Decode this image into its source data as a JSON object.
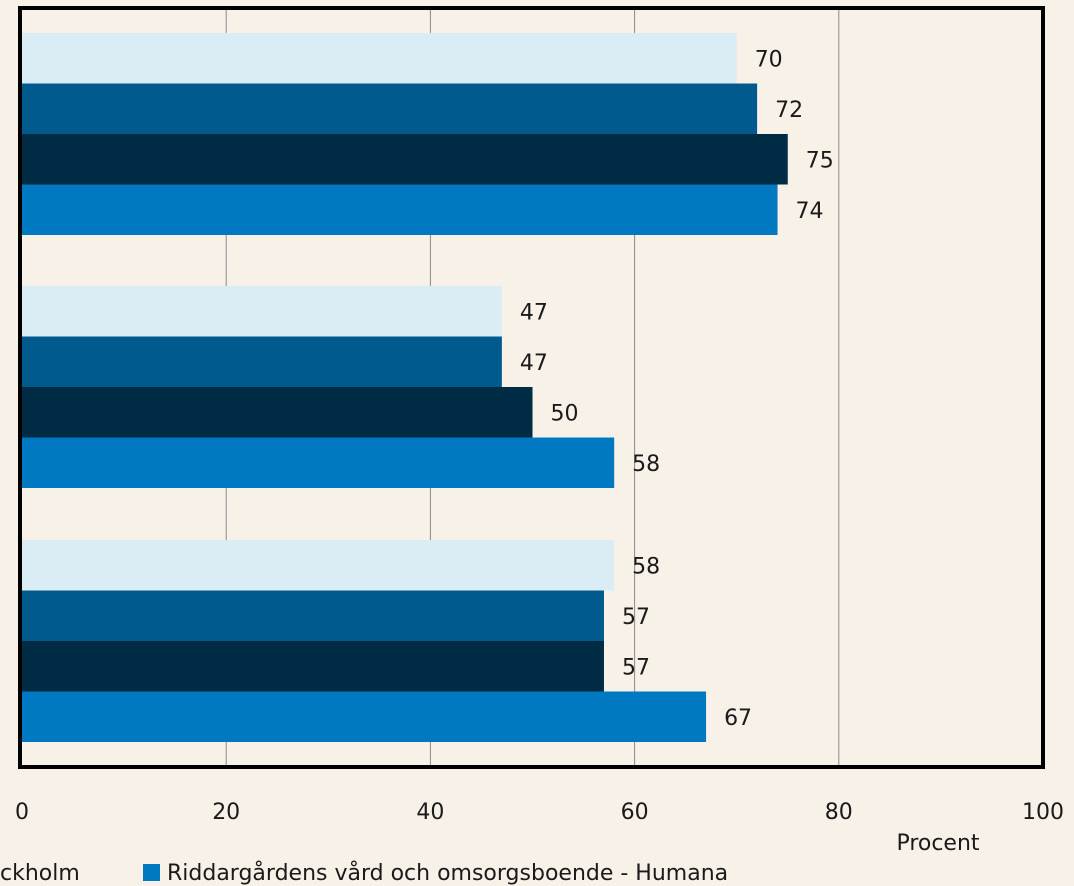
{
  "chart_data": {
    "type": "bar",
    "orientation": "horizontal",
    "xlabel": "Procent",
    "xlim": [
      0,
      100
    ],
    "x_ticks": [
      "0",
      "20",
      "40",
      "60",
      "80",
      "100"
    ],
    "grid": "vertical",
    "groups": 3,
    "series": [
      {
        "values": [
          70,
          47,
          58
        ],
        "color": "#daedf4"
      },
      {
        "values": [
          72,
          47,
          57
        ],
        "color": "#005a8e"
      },
      {
        "values": [
          75,
          50,
          57
        ],
        "color": "#002b45"
      },
      {
        "name": "Riddargårdens vård och omsorgsboende - Humana",
        "values": [
          74,
          58,
          67
        ],
        "color": "#0079c2"
      }
    ],
    "legend": {
      "placement": "bottom",
      "partial_left_text": "ckholm",
      "entry_label": "Riddargårdens vård och omsorgsboende - Humana",
      "entry_color": "#0079c2"
    }
  }
}
